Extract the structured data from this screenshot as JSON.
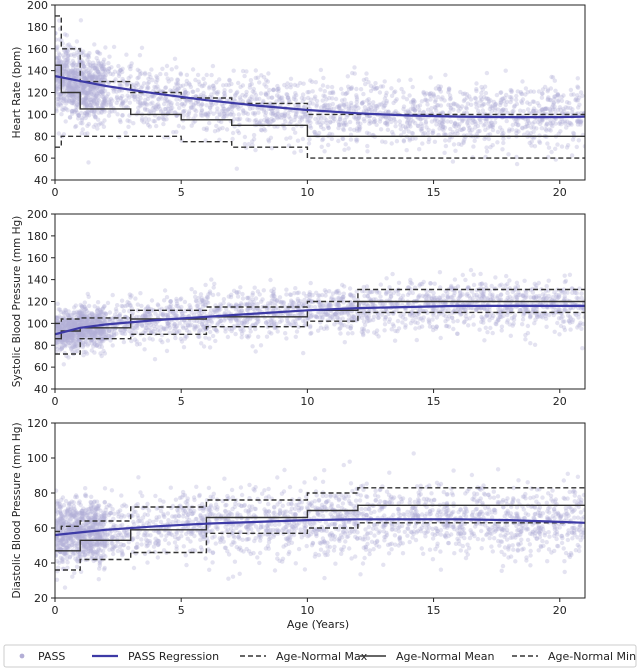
{
  "chart_data": [
    {
      "type": "scatter",
      "xlim": [
        0,
        21
      ],
      "ylim": [
        40,
        200
      ],
      "ylabel": "Heart Rate (bpm)",
      "xticks": [
        0,
        5,
        10,
        15,
        20
      ],
      "yticks": [
        40,
        60,
        80,
        100,
        120,
        140,
        160,
        180,
        200
      ],
      "regression": {
        "x": [
          0,
          2,
          4,
          6,
          8,
          10,
          12,
          14,
          16,
          18,
          20,
          21
        ],
        "y": [
          135,
          126,
          119,
          113,
          108,
          104,
          101,
          99,
          98,
          97.5,
          97.5,
          98
        ]
      },
      "normal_max": {
        "x": [
          0,
          0.25,
          0.25,
          1,
          1,
          3,
          3,
          5,
          5,
          7,
          7,
          10,
          10,
          21
        ],
        "y": [
          190,
          190,
          160,
          160,
          130,
          130,
          120,
          120,
          115,
          115,
          110,
          110,
          100,
          100
        ]
      },
      "normal_mean": {
        "x": [
          0,
          0.25,
          0.25,
          1,
          1,
          3,
          3,
          5,
          5,
          7,
          7,
          10,
          10,
          21
        ],
        "y": [
          145,
          145,
          120,
          120,
          105,
          105,
          100,
          100,
          95,
          95,
          90,
          90,
          80,
          80
        ]
      },
      "normal_min": {
        "x": [
          0,
          0.25,
          0.25,
          1,
          1,
          3,
          3,
          5,
          5,
          7,
          7,
          10,
          10,
          21
        ],
        "y": [
          70,
          70,
          80,
          80,
          80,
          80,
          80,
          80,
          75,
          75,
          70,
          70,
          60,
          60
        ]
      },
      "scatter_profile": {
        "x": [
          0,
          1,
          2,
          4,
          6,
          10,
          15,
          21
        ],
        "center": [
          135,
          128,
          122,
          115,
          110,
          104,
          98,
          98
        ],
        "spread": [
          18,
          17,
          16,
          15,
          15,
          15,
          15,
          15
        ]
      }
    },
    {
      "type": "scatter",
      "xlim": [
        0,
        21
      ],
      "ylim": [
        40,
        200
      ],
      "ylabel": "Systolic Blood Pressure (mm Hg)",
      "xticks": [
        0,
        5,
        10,
        15,
        20
      ],
      "yticks": [
        40,
        60,
        80,
        100,
        120,
        140,
        160,
        180,
        200
      ],
      "regression": {
        "x": [
          0,
          1,
          2,
          4,
          6,
          8,
          10,
          12,
          14,
          16,
          18,
          20,
          21
        ],
        "y": [
          90,
          96,
          99,
          103,
          106,
          109,
          112,
          114,
          115,
          116,
          116,
          116,
          116
        ]
      },
      "normal_max": {
        "x": [
          0,
          0.25,
          0.25,
          1,
          1,
          3,
          3,
          6,
          6,
          10,
          10,
          12,
          12,
          21
        ],
        "y": [
          100,
          100,
          104,
          104,
          105,
          105,
          112,
          112,
          115,
          115,
          120,
          120,
          131,
          131
        ]
      },
      "normal_mean": {
        "x": [
          0,
          0.25,
          0.25,
          1,
          1,
          3,
          3,
          6,
          6,
          10,
          10,
          12,
          12,
          21
        ],
        "y": [
          86,
          86,
          93,
          93,
          96,
          96,
          104,
          104,
          106,
          106,
          112,
          112,
          120,
          120
        ]
      },
      "normal_min": {
        "x": [
          0,
          0.25,
          0.25,
          1,
          1,
          3,
          3,
          6,
          6,
          10,
          10,
          12,
          12,
          21
        ],
        "y": [
          72,
          72,
          72,
          72,
          86,
          86,
          90,
          90,
          97,
          97,
          102,
          102,
          110,
          110
        ]
      },
      "scatter_profile": {
        "x": [
          0,
          1,
          3,
          6,
          10,
          15,
          21
        ],
        "center": [
          92,
          96,
          101,
          106,
          112,
          116,
          116
        ],
        "spread": [
          9,
          9,
          10,
          11,
          11,
          11,
          11
        ]
      }
    },
    {
      "type": "scatter",
      "xlim": [
        0,
        21
      ],
      "ylim": [
        20,
        120
      ],
      "ylabel": "Diastolic Blood Pressure (mm Hg)",
      "xlabel": "Age (Years)",
      "xticks": [
        0,
        5,
        10,
        15,
        20
      ],
      "yticks": [
        20,
        40,
        60,
        80,
        100,
        120
      ],
      "regression": {
        "x": [
          0,
          1,
          2,
          4,
          6,
          8,
          10,
          12,
          14,
          16,
          18,
          20,
          21
        ],
        "y": [
          56,
          57.5,
          59,
          61,
          62.5,
          63.5,
          64.5,
          65,
          65,
          65,
          64.5,
          63.5,
          63
        ]
      },
      "normal_max": {
        "x": [
          0,
          0.25,
          0.25,
          1,
          1,
          3,
          3,
          6,
          6,
          10,
          10,
          12,
          12,
          21
        ],
        "y": [
          58,
          58,
          61,
          61,
          64,
          64,
          72,
          72,
          76,
          76,
          80,
          80,
          83,
          83
        ]
      },
      "normal_mean": {
        "x": [
          0,
          0.25,
          0.25,
          1,
          1,
          3,
          3,
          6,
          6,
          10,
          10,
          12,
          12,
          21
        ],
        "y": [
          47,
          47,
          47,
          47,
          53,
          53,
          59,
          59,
          66,
          66,
          70,
          70,
          73,
          73
        ]
      },
      "normal_min": {
        "x": [
          0,
          0.25,
          0.25,
          1,
          1,
          3,
          3,
          6,
          6,
          10,
          10,
          12,
          12,
          21
        ],
        "y": [
          36,
          36,
          36,
          36,
          42,
          42,
          46,
          46,
          57,
          57,
          60,
          60,
          63,
          63
        ]
      },
      "scatter_profile": {
        "x": [
          0,
          1,
          3,
          6,
          10,
          15,
          21
        ],
        "center": [
          56,
          58,
          60,
          62,
          64,
          65,
          63
        ],
        "spread": [
          9,
          9,
          9,
          10,
          10,
          10,
          10
        ]
      }
    }
  ],
  "legend": {
    "placement": "bottom",
    "items": [
      {
        "label": "PASS",
        "style": "marker"
      },
      {
        "label": "PASS Regression",
        "style": "solid-blue"
      },
      {
        "label": "Age-Normal Max",
        "style": "dashed"
      },
      {
        "label": "Age-Normal Mean",
        "style": "solid-black"
      },
      {
        "label": "Age-Normal Min",
        "style": "dashed"
      }
    ]
  },
  "colors": {
    "scatter": "#b3aed6",
    "regression": "#3d3aa6",
    "normal": "#333333",
    "axis": "#222222"
  }
}
